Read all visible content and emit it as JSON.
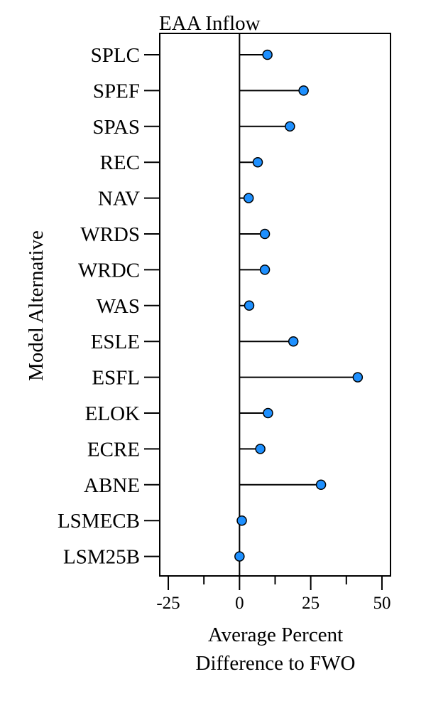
{
  "chart_data": {
    "type": "lollipop",
    "title": "EAA Inflow",
    "ylabel": "Model Alternative",
    "xlabel_lines": [
      "Average Percent",
      "Difference to FWO"
    ],
    "xlim": [
      -28,
      53
    ],
    "x_ticks": [
      -25,
      0,
      25,
      50
    ],
    "x_tick_labels": [
      "-25",
      "0",
      "25",
      "50"
    ],
    "x_minor_ticks": [
      -12.5,
      12.5,
      37.5
    ],
    "reference_line": 0,
    "point_color": "#1E90FF",
    "categories": [
      "SPLC",
      "SPEF",
      "SPAS",
      "REC",
      "NAV",
      "WRDS",
      "WRDC",
      "WAS",
      "ESLE",
      "ESFL",
      "ELOK",
      "ECRE",
      "ABNE",
      "LSMECB",
      "LSM25B"
    ],
    "values": [
      9.8,
      22.5,
      17.7,
      6.4,
      3.2,
      8.9,
      8.9,
      3.4,
      18.9,
      41.5,
      10.0,
      7.3,
      28.6,
      0.8,
      0.0
    ]
  }
}
